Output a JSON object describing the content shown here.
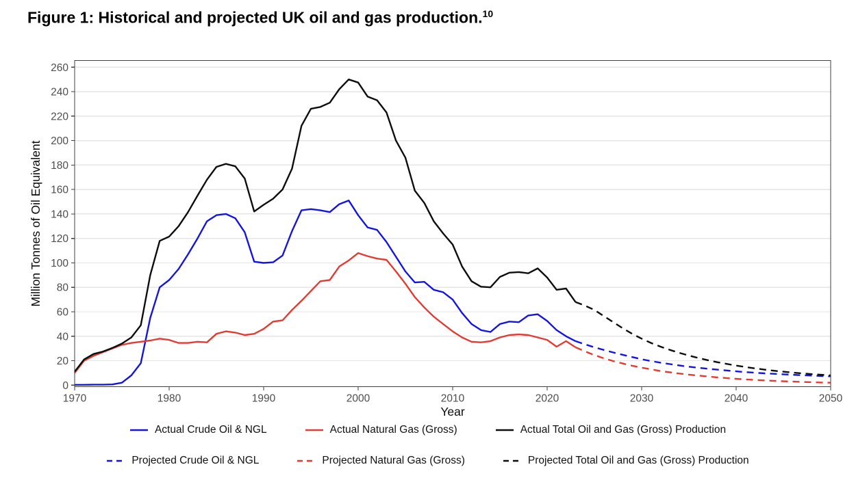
{
  "header": {
    "title_text": "Figure 1: Historical and projected UK oil and gas production.",
    "title_superscript": "10"
  },
  "chart_data": {
    "type": "line",
    "title": "Figure 1: Historical and projected UK oil and gas production.",
    "xlabel": "Year",
    "ylabel": "Million Tonnes of Oil Equivalent",
    "xlim": [
      1970,
      2050
    ],
    "ylim": [
      0,
      260
    ],
    "x_ticks": [
      1970,
      1980,
      1990,
      2000,
      2010,
      2020,
      2030,
      2040,
      2050
    ],
    "y_ticks": [
      0,
      20,
      40,
      60,
      80,
      100,
      120,
      140,
      160,
      180,
      200,
      220,
      240,
      260
    ],
    "grid": "horizontal-major-only",
    "legend_position": "bottom-two-rows",
    "colors": {
      "crude": "#1414e0",
      "gas": "#e23b32",
      "total": "#0d0d0d",
      "gridline": "#e5e5e5",
      "axis": "#3f3f3f",
      "tick_label": "#4d4d4d"
    },
    "series": [
      {
        "name": "Actual Crude Oil & NGL",
        "color": "#1414e0",
        "style": "solid",
        "points": [
          [
            1970,
            0.3
          ],
          [
            1971,
            0.3
          ],
          [
            1972,
            0.4
          ],
          [
            1973,
            0.4
          ],
          [
            1974,
            0.6
          ],
          [
            1975,
            2
          ],
          [
            1976,
            8
          ],
          [
            1977,
            18
          ],
          [
            1978,
            55
          ],
          [
            1979,
            80
          ],
          [
            1980,
            86
          ],
          [
            1981,
            95
          ],
          [
            1982,
            107
          ],
          [
            1983,
            120
          ],
          [
            1984,
            134
          ],
          [
            1985,
            139
          ],
          [
            1986,
            140
          ],
          [
            1987,
            136.5
          ],
          [
            1988,
            125
          ],
          [
            1989,
            101
          ],
          [
            1990,
            100
          ],
          [
            1991,
            100.5
          ],
          [
            1992,
            106
          ],
          [
            1993,
            126
          ],
          [
            1994,
            143
          ],
          [
            1995,
            144
          ],
          [
            1996,
            143
          ],
          [
            1997,
            141.5
          ],
          [
            1998,
            148
          ],
          [
            1999,
            151
          ],
          [
            2000,
            139
          ],
          [
            2001,
            129
          ],
          [
            2002,
            127
          ],
          [
            2003,
            117
          ],
          [
            2004,
            105
          ],
          [
            2005,
            93
          ],
          [
            2006,
            84
          ],
          [
            2007,
            84.5
          ],
          [
            2008,
            78
          ],
          [
            2009,
            76
          ],
          [
            2010,
            70
          ],
          [
            2011,
            59
          ],
          [
            2012,
            50
          ],
          [
            2013,
            45
          ],
          [
            2014,
            43.5
          ],
          [
            2015,
            50
          ],
          [
            2016,
            52
          ],
          [
            2017,
            51.5
          ],
          [
            2018,
            57
          ],
          [
            2019,
            58
          ],
          [
            2020,
            52.5
          ],
          [
            2021,
            45
          ],
          [
            2022,
            40
          ],
          [
            2023,
            36
          ]
        ]
      },
      {
        "name": "Actual Natural Gas (Gross)",
        "color": "#e23b32",
        "style": "solid",
        "points": [
          [
            1970,
            10
          ],
          [
            1971,
            20
          ],
          [
            1972,
            24
          ],
          [
            1973,
            27
          ],
          [
            1974,
            30
          ],
          [
            1975,
            33
          ],
          [
            1976,
            34.5
          ],
          [
            1977,
            35.5
          ],
          [
            1978,
            36.5
          ],
          [
            1979,
            38
          ],
          [
            1980,
            37
          ],
          [
            1981,
            34.5
          ],
          [
            1982,
            34.5
          ],
          [
            1983,
            35.5
          ],
          [
            1984,
            35
          ],
          [
            1985,
            42
          ],
          [
            1986,
            44
          ],
          [
            1987,
            43
          ],
          [
            1988,
            41
          ],
          [
            1989,
            42
          ],
          [
            1990,
            46
          ],
          [
            1991,
            52
          ],
          [
            1992,
            53
          ],
          [
            1993,
            61.5
          ],
          [
            1994,
            69
          ],
          [
            1995,
            77
          ],
          [
            1996,
            85
          ],
          [
            1997,
            86
          ],
          [
            1998,
            97
          ],
          [
            1999,
            102
          ],
          [
            2000,
            108
          ],
          [
            2001,
            105.5
          ],
          [
            2002,
            103.5
          ],
          [
            2003,
            102.5
          ],
          [
            2004,
            93
          ],
          [
            2005,
            83
          ],
          [
            2006,
            72
          ],
          [
            2007,
            63.5
          ],
          [
            2008,
            56
          ],
          [
            2009,
            50
          ],
          [
            2010,
            44
          ],
          [
            2011,
            39
          ],
          [
            2012,
            35.5
          ],
          [
            2013,
            35
          ],
          [
            2014,
            36
          ],
          [
            2015,
            39
          ],
          [
            2016,
            41
          ],
          [
            2017,
            41.5
          ],
          [
            2018,
            41
          ],
          [
            2019,
            39
          ],
          [
            2020,
            37
          ],
          [
            2021,
            31.5
          ],
          [
            2022,
            36
          ],
          [
            2023,
            31
          ]
        ]
      },
      {
        "name": "Actual Total Oil and Gas (Gross) Production",
        "color": "#0d0d0d",
        "style": "solid",
        "points": [
          [
            1970,
            11
          ],
          [
            1971,
            21
          ],
          [
            1972,
            25.5
          ],
          [
            1973,
            27.5
          ],
          [
            1974,
            30.5
          ],
          [
            1975,
            34
          ],
          [
            1976,
            39
          ],
          [
            1977,
            49
          ],
          [
            1978,
            90
          ],
          [
            1979,
            118
          ],
          [
            1980,
            121.5
          ],
          [
            1981,
            130
          ],
          [
            1982,
            141.5
          ],
          [
            1983,
            155
          ],
          [
            1984,
            168
          ],
          [
            1985,
            178.5
          ],
          [
            1986,
            181
          ],
          [
            1987,
            179
          ],
          [
            1988,
            169
          ],
          [
            1989,
            142
          ],
          [
            1990,
            147.5
          ],
          [
            1991,
            152.5
          ],
          [
            1992,
            160
          ],
          [
            1993,
            177
          ],
          [
            1994,
            212
          ],
          [
            1995,
            226
          ],
          [
            1996,
            227.5
          ],
          [
            1997,
            231
          ],
          [
            1998,
            242
          ],
          [
            1999,
            250
          ],
          [
            2000,
            247.5
          ],
          [
            2001,
            236
          ],
          [
            2002,
            233
          ],
          [
            2003,
            223
          ],
          [
            2004,
            200
          ],
          [
            2005,
            186
          ],
          [
            2006,
            159
          ],
          [
            2007,
            149
          ],
          [
            2008,
            134
          ],
          [
            2009,
            124
          ],
          [
            2010,
            115
          ],
          [
            2011,
            97
          ],
          [
            2012,
            85
          ],
          [
            2013,
            80.5
          ],
          [
            2014,
            80
          ],
          [
            2015,
            88.5
          ],
          [
            2016,
            92
          ],
          [
            2017,
            92.5
          ],
          [
            2018,
            91.5
          ],
          [
            2019,
            95.5
          ],
          [
            2020,
            88
          ],
          [
            2021,
            78
          ],
          [
            2022,
            79
          ],
          [
            2023,
            68
          ]
        ]
      },
      {
        "name": "Projected Crude Oil & NGL",
        "color": "#1414e0",
        "style": "dashed",
        "points": [
          [
            2023,
            36
          ],
          [
            2024,
            33.4
          ],
          [
            2025,
            31
          ],
          [
            2026,
            28.8
          ],
          [
            2027,
            26.7
          ],
          [
            2028,
            24.8
          ],
          [
            2029,
            23
          ],
          [
            2030,
            21.2
          ],
          [
            2031,
            19.7
          ],
          [
            2032,
            18.4
          ],
          [
            2033,
            17.2
          ],
          [
            2034,
            16.1
          ],
          [
            2035,
            15.1
          ],
          [
            2036,
            14.2
          ],
          [
            2037,
            13.4
          ],
          [
            2038,
            12.7
          ],
          [
            2039,
            12
          ],
          [
            2040,
            11.3
          ],
          [
            2041,
            10.7
          ],
          [
            2042,
            10.2
          ],
          [
            2043,
            9.7
          ],
          [
            2044,
            9.3
          ],
          [
            2045,
            8.9
          ],
          [
            2046,
            8.5
          ],
          [
            2047,
            8.1
          ],
          [
            2048,
            7.8
          ],
          [
            2049,
            7.5
          ],
          [
            2050,
            7.2
          ]
        ]
      },
      {
        "name": "Projected Natural Gas (Gross)",
        "color": "#e23b32",
        "style": "dashed",
        "points": [
          [
            2023,
            31
          ],
          [
            2024,
            27.6
          ],
          [
            2025,
            24.6
          ],
          [
            2026,
            22
          ],
          [
            2027,
            19.7
          ],
          [
            2028,
            17.7
          ],
          [
            2029,
            15.9
          ],
          [
            2030,
            14.3
          ],
          [
            2031,
            12.9
          ],
          [
            2032,
            11.6
          ],
          [
            2033,
            10.5
          ],
          [
            2034,
            9.5
          ],
          [
            2035,
            8.6
          ],
          [
            2036,
            7.8
          ],
          [
            2037,
            7.1
          ],
          [
            2038,
            6.4
          ],
          [
            2039,
            5.8
          ],
          [
            2040,
            5.2
          ],
          [
            2041,
            4.7
          ],
          [
            2042,
            4.3
          ],
          [
            2043,
            3.9
          ],
          [
            2044,
            3.5
          ],
          [
            2045,
            3.2
          ],
          [
            2046,
            2.9
          ],
          [
            2047,
            2.6
          ],
          [
            2048,
            2.4
          ],
          [
            2049,
            2.2
          ],
          [
            2050,
            2
          ]
        ]
      },
      {
        "name": "Projected Total Oil and Gas (Gross) Production",
        "color": "#0d0d0d",
        "style": "dashed",
        "points": [
          [
            2023,
            68
          ],
          [
            2024,
            65
          ],
          [
            2025,
            61.5
          ],
          [
            2026,
            56.5
          ],
          [
            2027,
            51.5
          ],
          [
            2028,
            46.5
          ],
          [
            2029,
            42
          ],
          [
            2030,
            38
          ],
          [
            2031,
            34.5
          ],
          [
            2032,
            31.5
          ],
          [
            2033,
            28.8
          ],
          [
            2034,
            26.4
          ],
          [
            2035,
            24.2
          ],
          [
            2036,
            22.2
          ],
          [
            2037,
            20.4
          ],
          [
            2038,
            18.8
          ],
          [
            2039,
            17.4
          ],
          [
            2040,
            16
          ],
          [
            2041,
            14.8
          ],
          [
            2042,
            13.7
          ],
          [
            2043,
            12.7
          ],
          [
            2044,
            11.8
          ],
          [
            2045,
            11
          ],
          [
            2046,
            10.3
          ],
          [
            2047,
            9.6
          ],
          [
            2048,
            9
          ],
          [
            2049,
            8.5
          ],
          [
            2050,
            8
          ]
        ]
      }
    ]
  }
}
